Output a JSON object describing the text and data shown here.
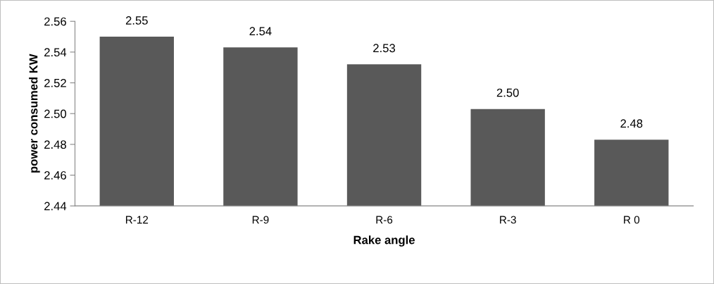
{
  "chart_data": {
    "type": "bar",
    "xlabel": "Rake angle",
    "ylabel": "power consumed KW",
    "categories": [
      "R-12",
      "R-9",
      "R-6",
      "R-3",
      "R 0"
    ],
    "values": [
      2.55,
      2.543,
      2.532,
      2.503,
      2.483
    ],
    "value_labels": [
      "2.55",
      "2.54",
      "2.53",
      "2.50",
      "2.48"
    ],
    "color": "#595959",
    "ylim": [
      2.44,
      2.56
    ],
    "yticks": [
      "2.44",
      "2.46",
      "2.48",
      "2.50",
      "2.52",
      "2.54",
      "2.56"
    ],
    "grid": false,
    "legend": false
  }
}
